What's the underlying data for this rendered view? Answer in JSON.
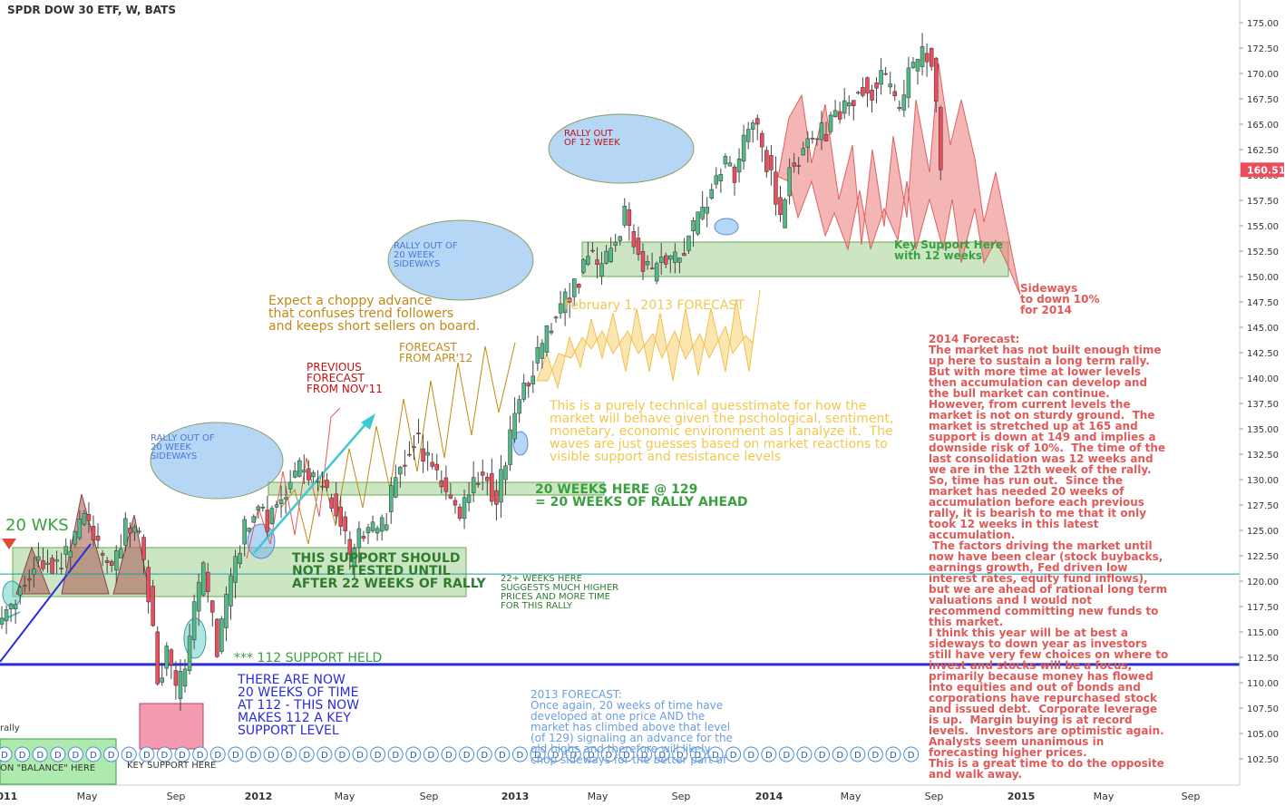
{
  "title": "SPDR DOW 30 ETF, W, BATS",
  "chart_data": {
    "type": "candlestick",
    "ylim": [
      100,
      176
    ],
    "y_ticks": [
      102.5,
      105.0,
      107.5,
      110.0,
      112.5,
      115.0,
      117.5,
      120.0,
      122.5,
      125.0,
      127.5,
      130.0,
      132.5,
      135.0,
      137.5,
      140.0,
      142.5,
      145.0,
      147.5,
      150.0,
      152.5,
      155.0,
      157.5,
      160.0,
      162.5,
      165.0,
      167.5,
      170.0,
      172.5,
      175.0
    ],
    "y_tick_labels": [
      "102.50",
      "105.00",
      "107.50",
      "110.00",
      "112.50",
      "115.00",
      "117.50",
      "120.00",
      "122.50",
      "125.00",
      "127.50",
      "130.00",
      "132.50",
      "135.00",
      "137.50",
      "140.00",
      "142.50",
      "145.00",
      "147.50",
      "150.00",
      "152.50",
      "155.00",
      "157.50",
      "160.00",
      "162.50",
      "165.00",
      "167.50",
      "170.00",
      "172.50",
      "175.00"
    ],
    "x_ticks": [
      "2011",
      "May",
      "Sep",
      "2012",
      "May",
      "Sep",
      "2013",
      "May",
      "Sep",
      "2014",
      "May",
      "Sep",
      "2015",
      "May",
      "Sep"
    ],
    "last_price": 160.51,
    "last_price_label": "160.51",
    "colors": {
      "up": "#53b987",
      "down": "#eb4d5c",
      "price_tag": "#eb4d5c",
      "support_line": "#2a2ed6"
    },
    "support_line": 111.8,
    "ref_line": 120.7,
    "weekly_close_waypoints": [
      [
        0,
        116.0
      ],
      [
        5,
        120.0
      ],
      [
        8,
        122.3
      ],
      [
        12,
        121.5
      ],
      [
        16,
        124.0
      ],
      [
        18,
        126.5
      ],
      [
        21,
        123.0
      ],
      [
        24,
        121.0
      ],
      [
        27,
        125.5
      ],
      [
        30,
        124.0
      ],
      [
        32,
        119.0
      ],
      [
        34,
        110.0
      ],
      [
        36,
        113.0
      ],
      [
        38,
        109.0
      ],
      [
        40,
        111.0
      ],
      [
        42,
        117.0
      ],
      [
        44,
        121.0
      ],
      [
        46,
        116.0
      ],
      [
        47,
        113.0
      ],
      [
        49,
        118.0
      ],
      [
        51,
        121.5
      ],
      [
        53,
        125.0
      ],
      [
        56,
        127.5
      ],
      [
        58,
        126.0
      ],
      [
        61,
        128.5
      ],
      [
        64,
        130.5
      ],
      [
        66,
        131.5
      ],
      [
        68,
        130.0
      ],
      [
        70,
        129.5
      ],
      [
        72,
        128.0
      ],
      [
        74,
        126.0
      ],
      [
        76,
        121.5
      ],
      [
        78,
        124.0
      ],
      [
        80,
        125.5
      ],
      [
        82,
        124.5
      ],
      [
        84,
        126.5
      ],
      [
        86,
        130.0
      ],
      [
        88,
        132.0
      ],
      [
        90,
        134.0
      ],
      [
        92,
        133.0
      ],
      [
        94,
        131.0
      ],
      [
        96,
        130.0
      ],
      [
        98,
        128.0
      ],
      [
        100,
        126.5
      ],
      [
        102,
        128.5
      ],
      [
        104,
        130.5
      ],
      [
        106,
        130.0
      ],
      [
        108,
        128.0
      ],
      [
        110,
        132.0
      ],
      [
        112,
        136.0
      ],
      [
        114,
        139.0
      ],
      [
        116,
        141.0
      ],
      [
        118,
        143.0
      ],
      [
        120,
        145.5
      ],
      [
        122,
        146.5
      ],
      [
        124,
        148.5
      ],
      [
        126,
        150.0
      ],
      [
        128,
        152.5
      ],
      [
        130,
        150.5
      ],
      [
        132,
        151.5
      ],
      [
        134,
        153.5
      ],
      [
        136,
        156.0
      ],
      [
        138,
        154.0
      ],
      [
        140,
        151.0
      ],
      [
        142,
        150.0
      ],
      [
        144,
        152.5
      ],
      [
        146,
        151.0
      ],
      [
        148,
        152.0
      ],
      [
        150,
        154.0
      ],
      [
        152,
        155.5
      ],
      [
        154,
        157.5
      ],
      [
        156,
        160.0
      ],
      [
        158,
        161.0
      ],
      [
        160,
        160.0
      ],
      [
        162,
        163.0
      ],
      [
        164,
        165.0
      ],
      [
        166,
        163.0
      ],
      [
        168,
        160.0
      ],
      [
        170,
        155.0
      ],
      [
        172,
        161.0
      ],
      [
        174,
        162.0
      ],
      [
        176,
        163.5
      ],
      [
        178,
        164.0
      ],
      [
        180,
        164.5
      ],
      [
        182,
        166.0
      ],
      [
        184,
        166.5
      ],
      [
        186,
        168.0
      ],
      [
        188,
        169.0
      ],
      [
        190,
        168.5
      ],
      [
        192,
        169.5
      ],
      [
        194,
        168.0
      ],
      [
        196,
        166.0
      ],
      [
        198,
        170.0
      ],
      [
        200,
        171.0
      ],
      [
        202,
        172.0
      ],
      [
        203,
        171.5
      ],
      [
        204,
        166.5
      ],
      [
        205,
        160.51
      ]
    ],
    "annotations": [
      {
        "id": "previous-forecast",
        "text": "PREVIOUS\nFORECAST\nFROM NOV'11",
        "color": "#c41212"
      },
      {
        "id": "forecast-apr12",
        "text": "FORECAST\nFROM APR'12",
        "color": "#c08a18"
      },
      {
        "id": "expect-choppy",
        "text": "Expect a choppy advance\nthat confuses trend followers\nand keeps short sellers on board.",
        "color": "#c08a18"
      },
      {
        "id": "feb-forecast",
        "text": "February 1, 2013 FORECAST",
        "color": "#f0c850"
      },
      {
        "id": "technical-guess",
        "text": "This is a purely technical guesstimate for how the\nmarket will behave given the pschological, sentiment,\nmonetary, economic environment as I analyze it.  The\nwaves are just guesses based on market reactions to\nvisible support and resistance levels",
        "color": "#f0c850"
      },
      {
        "id": "rally-20-sideways-1",
        "text": "RALLY OUT OF\n20 WEEK\nSIDEWAYS",
        "color": "#4a78d8"
      },
      {
        "id": "rally-20-sideways-2",
        "text": "RALLY OUT OF\n20 WEEK\nSIDEWAYS",
        "color": "#4a78d8"
      },
      {
        "id": "rally-12-week",
        "text": "RALLY OUT\nOF 12 WEEK",
        "color": "#c41212"
      },
      {
        "id": "twenty-wks",
        "text": "20 WKS",
        "color": "#3aa040"
      },
      {
        "id": "support-not-tested",
        "text": "THIS SUPPORT SHOULD\nNOT BE TESTED UNTIL\nAFTER 22 WEEKS OF RALLY",
        "color": "#2e7d2e"
      },
      {
        "id": "twenty-weeks-129",
        "text": "20 WEEKS HERE @ 129\n= 20 WEEKS OF RALLY AHEAD",
        "color": "#3aa040"
      },
      {
        "id": "twentytwo-weeks",
        "text": "22+ WEEKS HERE\nSUGGESTS MUCH HIGHER\nPRICES AND MORE TIME\nFOR THIS RALLY",
        "color": "#2e7d2e"
      },
      {
        "id": "support-112-held",
        "text": "*** 112 SUPPORT HELD",
        "color": "#3aa040"
      },
      {
        "id": "twenty-weeks-112",
        "text": "THERE ARE NOW\n20 WEEKS OF TIME\nAT 112 - THIS NOW\nMAKES 112 A KEY\nSUPPORT LEVEL",
        "color": "#2a2ed6"
      },
      {
        "id": "forecast-2013",
        "text": "2013 FORECAST:\nOnce again, 20 weeks of time have\ndeveloped at one price AND the\nmarket has climbed above that level\n(of 129) signaling an advance for the\nold highs and therefore will likely\nchop sideways for the better part of",
        "color": "#6a9ee0"
      },
      {
        "id": "key-support",
        "text": "Key Support Here\nwith 12 weeks",
        "color": "#3aa040"
      },
      {
        "id": "sideways-down",
        "text": "Sideways\nto down 10%\nfor 2014",
        "color": "#e05a5a"
      },
      {
        "id": "forecast-2014",
        "text": "2014 Forecast:\nThe market has not built enough time\nup here to sustain a long term rally.\nBut with more time at lower levels\nthen accumulation can develop and\nthe bull market can continue.\nHowever, from current levels the\nmarket is not on sturdy ground.  The\nmarket is stretched up at 165 and\nsupport is down at 149 and implies a\ndownside risk of 10%.  The time of the\nlast consolidation was 12 weeks and\nwe are in the 12th week of the rally.\nSo, time has run out.  Since the\nmarket has needed 20 weeks of\naccumulation before each previous\nrally, it is bearish to me that it only\ntook 12 weeks in this latest\naccumulation.\n The factors driving the market until\nnow have been clear (stock buybacks,\nearnings growth, Fed driven low\ninterest rates, equity fund inflows),\nbut we are ahead of rational long term\nvaluations and I would not\nrecommend committing new funds to\nthis market.\nI think this year will be at best a\nsideways to down year as investors\nstill have very few choices on where to\ninvest and stocks will be a focus,\nprimarily because money has flowed\ninto equities and out of bonds and\ncorporations have repurchased stock\nand issued debt.  Corporate leverage\nis up.  Margin buying is at record\nlevels.  Investors are optimistic again.\nAnalysts seem unanimous in\nforecasting higher prices.\nThis is a great time to do the opposite\nand walk away.",
        "color": "#e05a5a"
      },
      {
        "id": "rally-left",
        "text": "rally",
        "color": "#333333"
      },
      {
        "id": "balance-here",
        "text": "ON \"BALANCE\" HERE",
        "color": "#333333"
      },
      {
        "id": "key-support-here",
        "text": "KEY SUPPORT HERE",
        "color": "#333333"
      }
    ],
    "dividend_marker_label": "D",
    "dividend_marker_count": 52
  }
}
